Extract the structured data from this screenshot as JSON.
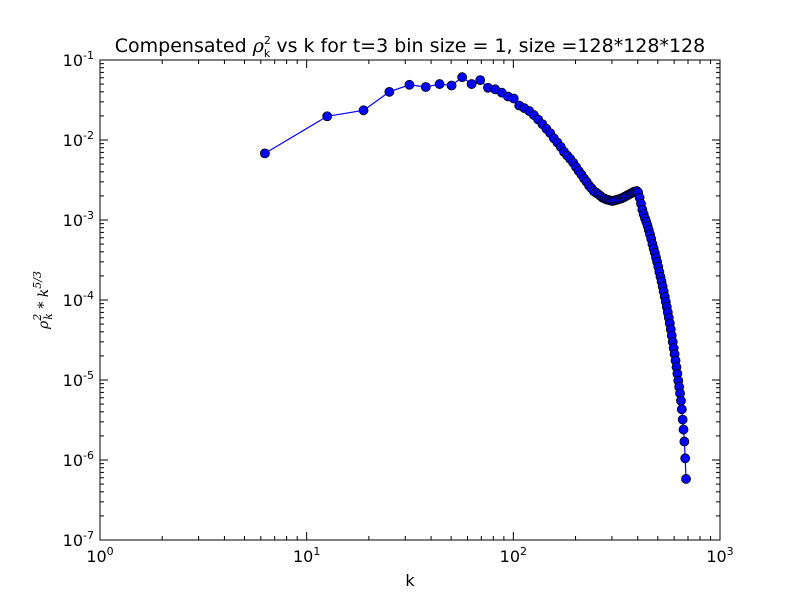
{
  "chart_data": {
    "type": "line",
    "title": "Compensated ρ_k^2 vs k for t=3 bin size = 1, size =128*128*128",
    "title_parts": {
      "prefix": "Compensated ",
      "symbol": "ρ",
      "sup": "2",
      "sub": "k",
      "suffix": " vs k for t=3 bin size = 1, size =128*128*128"
    },
    "xlabel": "k",
    "ylabel": "ρ_k^2 * k^(5/3)",
    "ylabel_parts": {
      "symbol": "ρ",
      "sup": "2",
      "sub": "k",
      "middle": " * k",
      "exp": "5/3"
    },
    "x_scale": "log",
    "y_scale": "log",
    "xlim": [
      1,
      1000
    ],
    "ylim": [
      1e-07,
      0.1
    ],
    "x_ticks": [
      {
        "value": 1,
        "base": "10",
        "exp": "0"
      },
      {
        "value": 10,
        "base": "10",
        "exp": "1"
      },
      {
        "value": 100,
        "base": "10",
        "exp": "2"
      },
      {
        "value": 1000,
        "base": "10",
        "exp": "3"
      }
    ],
    "y_ticks": [
      {
        "value": 1e-07,
        "base": "10",
        "exp": "-7"
      },
      {
        "value": 1e-06,
        "base": "10",
        "exp": "-6"
      },
      {
        "value": 1e-05,
        "base": "10",
        "exp": "-5"
      },
      {
        "value": 0.0001,
        "base": "10",
        "exp": "-4"
      },
      {
        "value": 0.001,
        "base": "10",
        "exp": "-3"
      },
      {
        "value": 0.01,
        "base": "10",
        "exp": "-2"
      },
      {
        "value": 0.1,
        "base": "10",
        "exp": "-1"
      }
    ],
    "grid": false,
    "colors": {
      "series": "#0000ff",
      "marker_edge": "#000000",
      "axes": "#000000"
    },
    "series": [
      {
        "x": [
          6.28,
          12.57,
          18.85,
          25.13,
          31.42,
          37.7,
          43.98,
          50.27,
          56.55,
          62.83,
          69.12,
          75.4,
          81.68,
          87.96,
          94.25,
          100.5,
          106.8,
          113.1,
          119.4,
          125.7,
          131.9,
          138.2,
          144.5,
          150.8,
          157.1,
          163.4,
          169.6,
          175.9,
          182.2,
          188.5,
          194.8,
          201.1,
          207.3,
          213.6,
          219.9,
          226.2,
          232.5,
          238.8,
          245.0,
          251.3,
          257.6,
          263.9,
          270.2,
          276.5,
          282.7,
          289.0,
          295.3,
          301.6,
          307.9,
          314.2,
          320.4,
          326.7,
          333.0,
          339.3,
          345.6,
          351.9,
          358.1,
          364.4,
          370.7,
          377.0,
          383.3,
          389.6,
          395.8,
          402.1,
          408.4,
          414.7,
          421.0,
          427.3,
          433.5,
          439.8,
          446.1,
          452.4,
          458.7,
          465.0,
          471.2,
          477.5,
          483.8,
          490.1,
          496.4,
          502.7,
          508.9,
          515.2,
          521.5,
          527.8,
          534.1,
          540.4,
          546.6,
          552.9,
          559.2,
          565.5,
          571.8,
          578.1,
          584.3,
          590.6,
          596.9,
          603.2,
          609.5,
          615.8,
          622.0,
          628.3,
          634.6,
          640.9,
          647.2,
          653.5,
          659.7,
          666.0,
          672.3,
          678.6,
          684.9
        ],
        "y": [
          0.0068,
          0.0198,
          0.0235,
          0.04,
          0.049,
          0.046,
          0.05,
          0.048,
          0.061,
          0.05,
          0.056,
          0.045,
          0.043,
          0.039,
          0.035,
          0.033,
          0.027,
          0.025,
          0.023,
          0.0205,
          0.018,
          0.0158,
          0.0138,
          0.0122,
          0.0105,
          0.0093,
          0.0082,
          0.0071,
          0.0064,
          0.0058,
          0.0052,
          0.0046,
          0.0041,
          0.0037,
          0.0033,
          0.003,
          0.0027,
          0.0025,
          0.0023,
          0.0022,
          0.0021,
          0.002,
          0.0019,
          0.00185,
          0.0018,
          0.00178,
          0.00175,
          0.00173,
          0.00175,
          0.00178,
          0.0018,
          0.00183,
          0.00186,
          0.0019,
          0.00195,
          0.002,
          0.00205,
          0.0021,
          0.00215,
          0.0022,
          0.00225,
          0.00228,
          0.0023,
          0.0022,
          0.0019,
          0.0016,
          0.00135,
          0.00118,
          0.00105,
          0.00095,
          0.00085,
          0.00075,
          0.00066,
          0.00058,
          0.0005,
          0.00044,
          0.00039,
          0.00034,
          0.0003,
          0.00026,
          0.000225,
          0.000195,
          0.00017,
          0.000148,
          0.000128,
          0.00011,
          9.5e-05,
          8.2e-05,
          7e-05,
          6e-05,
          5.1e-05,
          4.3e-05,
          3.6e-05,
          3e-05,
          2.5e-05,
          2.1e-05,
          1.75e-05,
          1.45e-05,
          1.2e-05,
          9.8e-06,
          8.2e-06,
          6.8e-06,
          5.5e-06,
          4.3e-06,
          3.2e-06,
          2.4e-06,
          1.7e-06,
          1.05e-06,
          5.8e-07
        ]
      }
    ]
  }
}
